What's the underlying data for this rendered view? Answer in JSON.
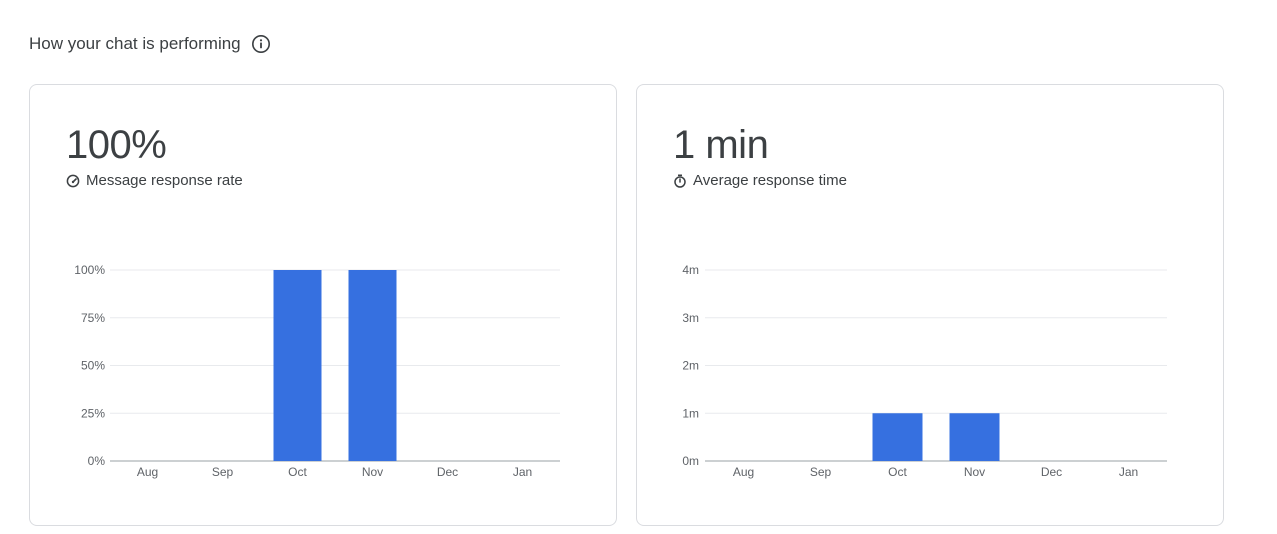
{
  "header": {
    "title": "How your chat is performing",
    "info_icon": "info-icon"
  },
  "cards": [
    {
      "value": "100%",
      "label": "Message response rate",
      "label_icon": "speed-gauge-icon"
    },
    {
      "value": "1 min",
      "label": "Average response time",
      "label_icon": "stopwatch-icon"
    }
  ],
  "colors": {
    "bar": "#3670e0",
    "grid": "#e8eaed",
    "axis": "#9aa0a6"
  },
  "chart_data": [
    {
      "type": "bar",
      "title": "",
      "xlabel": "",
      "ylabel": "",
      "categories": [
        "Aug",
        "Sep",
        "Oct",
        "Nov",
        "Dec",
        "Jan"
      ],
      "values": [
        0,
        0,
        100,
        100,
        0,
        0
      ],
      "ylim": [
        0,
        100
      ],
      "yticks": [
        0,
        25,
        50,
        75,
        100
      ],
      "ytick_labels": [
        "0%",
        "25%",
        "50%",
        "75%",
        "100%"
      ],
      "grid": true,
      "legend": "none"
    },
    {
      "type": "bar",
      "title": "",
      "xlabel": "",
      "ylabel": "",
      "categories": [
        "Aug",
        "Sep",
        "Oct",
        "Nov",
        "Dec",
        "Jan"
      ],
      "values": [
        0,
        0,
        1,
        1,
        0,
        0
      ],
      "ylim": [
        0,
        4
      ],
      "yticks": [
        0,
        1,
        2,
        3,
        4
      ],
      "ytick_labels": [
        "0m",
        "1m",
        "2m",
        "3m",
        "4m"
      ],
      "grid": true,
      "legend": "none"
    }
  ]
}
